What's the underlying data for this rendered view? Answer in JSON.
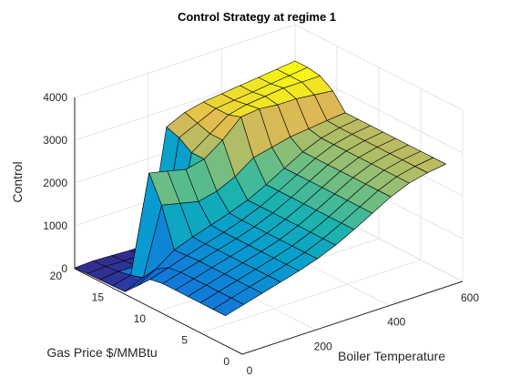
{
  "chart_data": {
    "type": "surface",
    "title": "Control Strategy at regime 1",
    "xlabel": "Boiler Temperature",
    "ylabel": "Gas Price $/MMBtu",
    "zlabel": "Control",
    "xlim": [
      0,
      600
    ],
    "ylim": [
      0,
      20
    ],
    "zlim": [
      0,
      4000
    ],
    "xticks": [
      "0",
      "200",
      "400",
      "600"
    ],
    "yticks": [
      "0",
      "5",
      "10",
      "15",
      "20"
    ],
    "zticks": [
      "0",
      "1000",
      "2000",
      "3000",
      "4000"
    ],
    "grid": true,
    "colormap": "parula",
    "x": [
      0,
      50,
      100,
      150,
      200,
      250,
      300,
      350,
      400,
      450,
      500,
      550,
      600
    ],
    "y": [
      2,
      3.5,
      5,
      6.5,
      8,
      9.5,
      11,
      12.5,
      14,
      15.5,
      17,
      18.5,
      20
    ],
    "z": [
      [
        700,
        820,
        940,
        1060,
        1180,
        1320,
        1500,
        1720,
        1960,
        2200,
        2380,
        2480,
        2540
      ],
      [
        700,
        820,
        940,
        1060,
        1180,
        1320,
        1500,
        1720,
        1960,
        2200,
        2380,
        2480,
        2540
      ],
      [
        700,
        820,
        940,
        1060,
        1180,
        1320,
        1500,
        1720,
        1960,
        2200,
        2380,
        2480,
        2540
      ],
      [
        700,
        820,
        940,
        1060,
        1180,
        1320,
        1500,
        1720,
        1960,
        2200,
        2380,
        2480,
        2540
      ],
      [
        700,
        820,
        940,
        1060,
        1180,
        1320,
        1500,
        1720,
        1960,
        2200,
        2380,
        2480,
        2540
      ],
      [
        700,
        820,
        940,
        1060,
        1180,
        1320,
        1500,
        1720,
        1960,
        2200,
        2380,
        2480,
        2540
      ],
      [
        650,
        780,
        920,
        1050,
        1180,
        1320,
        1500,
        1720,
        1960,
        2200,
        2380,
        2480,
        2540
      ],
      [
        350,
        600,
        900,
        1060,
        1200,
        1340,
        1500,
        1720,
        1960,
        2200,
        2380,
        2480,
        2540
      ],
      [
        60,
        250,
        1800,
        1700,
        1600,
        1700,
        1900,
        2200,
        2300,
        2400,
        2450,
        2500,
        2540
      ],
      [
        50,
        150,
        2400,
        2300,
        2200,
        2300,
        2600,
        3000,
        3050,
        3000,
        3000,
        2950,
        2900
      ],
      [
        40,
        90,
        80,
        80,
        80,
        2300,
        2600,
        2900,
        3000,
        3050,
        3100,
        3100,
        3100
      ],
      [
        30,
        60,
        50,
        40,
        40,
        2500,
        2700,
        2900,
        2950,
        3000,
        3050,
        3100,
        3150
      ],
      [
        20,
        40,
        20,
        0,
        0,
        2600,
        2800,
        2900,
        2950,
        3000,
        3050,
        3100,
        3150
      ]
    ]
  }
}
